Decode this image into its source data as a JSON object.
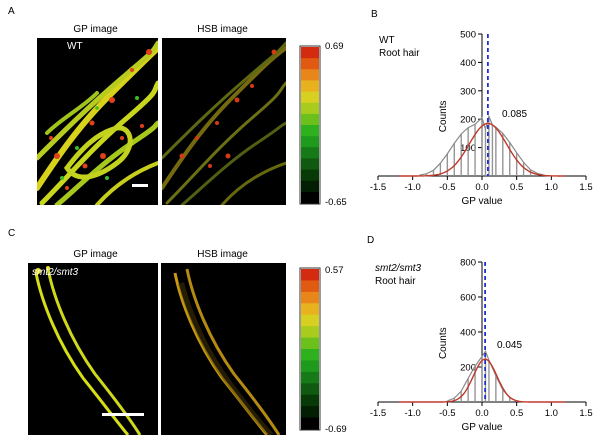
{
  "panels": {
    "A": {
      "letter": "A",
      "gp_title": "GP image",
      "hsb_title": "HSB image",
      "sample_label": "WT",
      "colorbar": {
        "max": "0.69",
        "min": "-0.65"
      }
    },
    "B": {
      "letter": "B",
      "line1": "WT",
      "line2": "Root hair",
      "annotation": "0.085"
    },
    "C": {
      "letter": "C",
      "gp_title": "GP image",
      "hsb_title": "HSB image",
      "sample_label": "smt2/smt3",
      "colorbar": {
        "max": "0.57",
        "min": "-0.69"
      }
    },
    "D": {
      "letter": "D",
      "line1": "smt2/smt3",
      "line2": "Root hair",
      "annotation": "0.045"
    }
  },
  "colors": {
    "histogram": "#8a8a8a",
    "fit": "#c0392b",
    "mean_line": "#1f2fd0",
    "colorbar_top": "#d42a10",
    "colorbar_mid": "#1fb01f",
    "colorbar_bottom": "#000000"
  },
  "chart_data": [
    {
      "type": "histogram",
      "panel": "B",
      "xlabel": "GP value",
      "ylabel": "Counts",
      "xlim": [
        -1.5,
        1.5
      ],
      "ylim": [
        0,
        500
      ],
      "xticks": [
        "-1.5",
        "-1.0",
        "-0.5",
        "0.0",
        "0.5",
        "1.0",
        "1.5"
      ],
      "yticks": [
        "100",
        "200",
        "300",
        "400",
        "500"
      ],
      "mean": 0.085,
      "fit_gaussian": {
        "mean": 0.085,
        "sd": 0.27,
        "peak": 185
      },
      "x": [
        -0.9,
        -0.8,
        -0.7,
        -0.6,
        -0.5,
        -0.4,
        -0.3,
        -0.2,
        -0.1,
        0.0,
        0.05,
        0.1,
        0.15,
        0.2,
        0.3,
        0.4,
        0.5,
        0.6,
        0.7,
        0.8,
        0.9
      ],
      "values": [
        3,
        8,
        20,
        45,
        78,
        115,
        148,
        170,
        182,
        205,
        165,
        210,
        180,
        172,
        150,
        118,
        82,
        48,
        22,
        9,
        3
      ]
    },
    {
      "type": "histogram",
      "panel": "D",
      "xlabel": "GP value",
      "ylabel": "Counts",
      "xlim": [
        -1.5,
        1.5
      ],
      "ylim": [
        0,
        800
      ],
      "xticks": [
        "-1.5",
        "-1.0",
        "-0.5",
        "0.0",
        "0.5",
        "1.0",
        "1.5"
      ],
      "yticks": [
        "200",
        "400",
        "600",
        "800"
      ],
      "mean": 0.045,
      "fit_gaussian": {
        "mean": 0.045,
        "sd": 0.17,
        "peak": 245
      },
      "x": [
        -0.5,
        -0.4,
        -0.3,
        -0.2,
        -0.1,
        0.0,
        0.05,
        0.1,
        0.2,
        0.3,
        0.4,
        0.5
      ],
      "values": [
        6,
        22,
        62,
        135,
        205,
        260,
        290,
        240,
        150,
        70,
        25,
        6
      ]
    }
  ]
}
